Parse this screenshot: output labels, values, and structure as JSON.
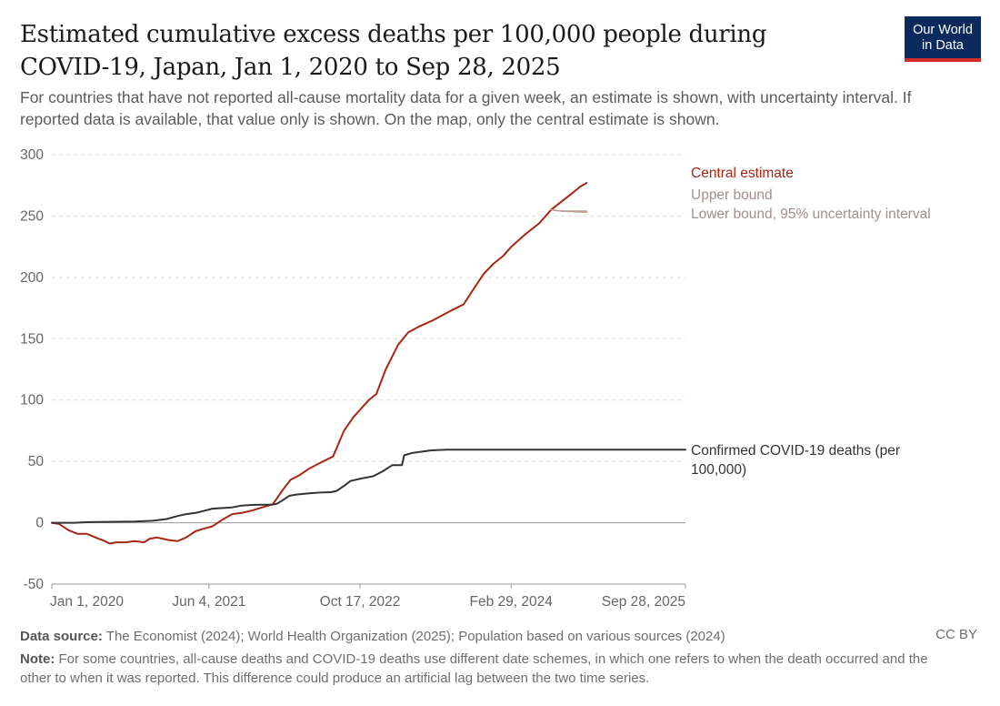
{
  "header": {
    "title": "Estimated cumulative excess deaths per 100,000 people during COVID-19, Japan, Jan 1, 2020 to Sep 28, 2025",
    "subtitle": "For countries that have not reported all-cause mortality data for a given week, an estimate is shown, with uncertainty interval. If reported data is available, that value only is shown. On the map, only the central estimate is shown.",
    "logo_line1": "Our World",
    "logo_line2": "in Data"
  },
  "footer": {
    "source_label": "Data source:",
    "source_text": "The Economist (2024); World Health Organization (2025); Population based on various sources (2024)",
    "note_label": "Note:",
    "note_text": "For some countries, all-cause deaths and COVID-19 deaths use different date schemes, in which one refers to when the death occurred and the other to when it was reported. This difference could produce an artificial lag between the two time series.",
    "license": "CC BY"
  },
  "chart_data": {
    "type": "line",
    "title": "Estimated cumulative excess deaths per 100,000 people during COVID-19, Japan, Jan 1, 2020 to Sep 28, 2025",
    "xlabel": "",
    "ylabel": "",
    "x_range": [
      "2020-01-01",
      "2025-09-28"
    ],
    "ylim": [
      -50,
      300
    ],
    "yticks": [
      -50,
      0,
      50,
      100,
      150,
      200,
      250,
      300
    ],
    "xticks": [
      {
        "date": "2020-01-01",
        "label": "Jan 1, 2020"
      },
      {
        "date": "2021-06-04",
        "label": "Jun 4, 2021"
      },
      {
        "date": "2022-10-17",
        "label": "Oct 17, 2022"
      },
      {
        "date": "2024-02-29",
        "label": "Feb 29, 2024"
      },
      {
        "date": "2025-09-28",
        "label": "Sep 28, 2025"
      }
    ],
    "grid": "horizontal dashed",
    "colors": {
      "central": "#a52714",
      "bounds": "#c09c95",
      "confirmed": "#333333"
    },
    "series": [
      {
        "name": "Central estimate",
        "key": "central",
        "points": [
          [
            "2020-01-01",
            0
          ],
          [
            "2020-01-25",
            -1
          ],
          [
            "2020-02-25",
            -6
          ],
          [
            "2020-03-25",
            -9
          ],
          [
            "2020-04-25",
            -9
          ],
          [
            "2020-05-25",
            -12
          ],
          [
            "2020-06-25",
            -15
          ],
          [
            "2020-07-10",
            -17
          ],
          [
            "2020-08-01",
            -16
          ],
          [
            "2020-09-01",
            -16
          ],
          [
            "2020-10-01",
            -15
          ],
          [
            "2020-11-01",
            -16
          ],
          [
            "2020-11-20",
            -13
          ],
          [
            "2020-12-15",
            -12
          ],
          [
            "2021-01-20",
            -14
          ],
          [
            "2021-02-20",
            -15
          ],
          [
            "2021-03-20",
            -12
          ],
          [
            "2021-04-20",
            -7
          ],
          [
            "2021-05-15",
            -5
          ],
          [
            "2021-06-15",
            -3
          ],
          [
            "2021-07-15",
            2
          ],
          [
            "2021-08-20",
            7
          ],
          [
            "2021-09-20",
            8
          ],
          [
            "2021-10-25",
            10
          ],
          [
            "2021-11-20",
            12
          ],
          [
            "2022-01-01",
            15
          ],
          [
            "2022-02-01",
            26
          ],
          [
            "2022-03-01",
            35
          ],
          [
            "2022-04-01",
            39
          ],
          [
            "2022-05-01",
            44
          ],
          [
            "2022-06-01",
            48
          ],
          [
            "2022-07-20",
            54
          ],
          [
            "2022-08-25",
            75
          ],
          [
            "2022-09-25",
            86
          ],
          [
            "2022-11-15",
            100
          ],
          [
            "2022-12-10",
            105
          ],
          [
            "2023-01-10",
            125
          ],
          [
            "2023-02-20",
            145
          ],
          [
            "2023-03-25",
            155
          ],
          [
            "2023-05-01",
            160
          ],
          [
            "2023-06-15",
            165
          ],
          [
            "2023-08-15",
            173
          ],
          [
            "2023-09-25",
            178
          ],
          [
            "2023-11-01",
            192
          ],
          [
            "2023-12-01",
            203
          ],
          [
            "2024-01-01",
            211
          ],
          [
            "2024-02-01",
            217
          ],
          [
            "2024-03-01",
            225
          ],
          [
            "2024-04-15",
            235
          ],
          [
            "2024-06-01",
            244
          ],
          [
            "2024-07-10",
            255
          ],
          [
            "2024-08-15",
            262
          ],
          [
            "2024-09-15",
            268
          ],
          [
            "2024-10-15",
            274
          ],
          [
            "2024-11-05",
            277
          ]
        ]
      },
      {
        "name": "Upper bound",
        "key": "upper",
        "points": [
          [
            "2024-07-10",
            255
          ],
          [
            "2024-08-15",
            254
          ],
          [
            "2024-11-05",
            254
          ]
        ]
      },
      {
        "name": "Lower bound, 95% uncertainty interval",
        "key": "lower",
        "points": [
          [
            "2024-07-10",
            255
          ],
          [
            "2024-08-15",
            254
          ],
          [
            "2024-11-05",
            253
          ]
        ]
      },
      {
        "name": "Confirmed COVID-19 deaths (per 100,000)",
        "key": "confirmed",
        "points": [
          [
            "2020-01-01",
            0
          ],
          [
            "2020-03-15",
            0
          ],
          [
            "2020-05-01",
            0.5
          ],
          [
            "2020-07-01",
            0.7
          ],
          [
            "2020-10-01",
            1
          ],
          [
            "2020-12-01",
            1.6
          ],
          [
            "2021-01-15",
            3
          ],
          [
            "2021-02-20",
            5.5
          ],
          [
            "2021-03-20",
            7
          ],
          [
            "2021-04-20",
            8
          ],
          [
            "2021-05-15",
            9.5
          ],
          [
            "2021-06-15",
            11.5
          ],
          [
            "2021-07-20",
            12
          ],
          [
            "2021-08-20",
            12.5
          ],
          [
            "2021-09-20",
            14
          ],
          [
            "2021-11-01",
            14.6
          ],
          [
            "2021-12-31",
            14.8
          ],
          [
            "2022-01-15",
            15.5
          ],
          [
            "2022-02-01",
            18
          ],
          [
            "2022-02-25",
            22
          ],
          [
            "2022-03-20",
            23
          ],
          [
            "2022-05-01",
            24
          ],
          [
            "2022-06-01",
            24.5
          ],
          [
            "2022-07-15",
            25
          ],
          [
            "2022-08-01",
            26
          ],
          [
            "2022-08-25",
            30
          ],
          [
            "2022-09-15",
            34
          ],
          [
            "2022-10-20",
            36
          ],
          [
            "2022-12-01",
            38
          ],
          [
            "2023-01-01",
            42
          ],
          [
            "2023-02-01",
            47
          ],
          [
            "2023-03-05",
            47
          ],
          [
            "2023-03-12",
            55
          ],
          [
            "2023-04-10",
            57
          ],
          [
            "2023-05-10",
            58
          ],
          [
            "2023-06-10",
            59
          ],
          [
            "2023-08-01",
            59.5
          ],
          [
            "2025-09-28",
            59.5
          ]
        ]
      }
    ],
    "legend": [
      {
        "key": "central",
        "lines": [
          "Central estimate"
        ]
      },
      {
        "key": "upper",
        "lines": [
          "Upper bound"
        ]
      },
      {
        "key": "lower",
        "lines": [
          "Lower bound, 95% uncertainty interval"
        ]
      },
      {
        "key": "confirmed",
        "lines": [
          "Confirmed COVID-19 deaths (per",
          "100,000)"
        ]
      }
    ]
  }
}
